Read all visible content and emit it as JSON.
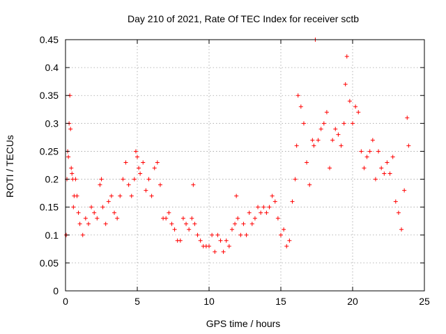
{
  "chart_data": {
    "type": "scatter",
    "title": "Day 210 of 2021, Rate Of TEC Index for receiver sctb",
    "xlabel": "GPS time / hours",
    "ylabel": "ROTI / TECUs",
    "xlim": [
      0,
      25
    ],
    "ylim": [
      0,
      0.45
    ],
    "xticks": [
      "0",
      "5",
      "10",
      "15",
      "20",
      "25"
    ],
    "yticks": [
      "0",
      "0.05",
      "0.1",
      "0.15",
      "0.2",
      "0.25",
      "0.3",
      "0.35",
      "0.4",
      "0.45"
    ],
    "grid": true,
    "marker": "+",
    "color": "#ff0000",
    "series": [
      {
        "x": [
          0.05,
          0.1,
          0.15,
          0.2,
          0.25,
          0.3,
          0.35,
          0.4,
          0.45,
          0.5,
          0.55,
          0.6,
          0.7,
          0.8,
          0.9,
          1.0,
          1.2,
          1.4,
          1.6,
          1.8,
          2.0,
          2.2,
          2.4,
          2.5,
          2.6,
          2.8,
          3.0,
          3.2,
          3.4,
          3.6,
          3.8,
          4.0,
          4.2,
          4.4,
          4.6,
          4.8,
          4.9,
          5.0,
          5.1,
          5.2,
          5.4,
          5.6,
          5.8,
          6.0,
          6.2,
          6.4,
          6.6,
          6.8,
          7.0,
          7.2,
          7.4,
          7.6,
          7.8,
          8.0,
          8.2,
          8.4,
          8.6,
          8.8,
          8.9,
          9.0,
          9.2,
          9.4,
          9.6,
          9.8,
          10.0,
          10.2,
          10.4,
          10.6,
          10.8,
          11.0,
          11.2,
          11.4,
          11.6,
          11.8,
          11.9,
          12.0,
          12.2,
          12.4,
          12.6,
          12.8,
          13.0,
          13.2,
          13.4,
          13.6,
          13.8,
          14.0,
          14.2,
          14.4,
          14.6,
          14.8,
          15.0,
          15.2,
          15.4,
          15.6,
          15.8,
          16.0,
          16.1,
          16.2,
          16.4,
          16.6,
          16.8,
          17.0,
          17.2,
          17.3,
          17.4,
          17.6,
          17.8,
          18.0,
          18.2,
          18.4,
          18.6,
          18.8,
          19.0,
          19.2,
          19.4,
          19.5,
          19.6,
          19.8,
          20.0,
          20.2,
          20.4,
          20.6,
          20.8,
          21.0,
          21.2,
          21.4,
          21.6,
          21.8,
          22.0,
          22.2,
          22.4,
          22.6,
          22.8,
          23.0,
          23.2,
          23.4,
          23.6,
          23.8,
          23.9
        ],
        "y": [
          0.1,
          0.2,
          0.25,
          0.24,
          0.3,
          0.35,
          0.29,
          0.22,
          0.21,
          0.2,
          0.15,
          0.17,
          0.2,
          0.17,
          0.14,
          0.12,
          0.1,
          0.13,
          0.12,
          0.15,
          0.14,
          0.13,
          0.19,
          0.2,
          0.15,
          0.12,
          0.16,
          0.17,
          0.14,
          0.13,
          0.17,
          0.2,
          0.23,
          0.19,
          0.17,
          0.2,
          0.25,
          0.24,
          0.22,
          0.21,
          0.23,
          0.18,
          0.2,
          0.17,
          0.22,
          0.23,
          0.19,
          0.13,
          0.13,
          0.14,
          0.12,
          0.11,
          0.09,
          0.09,
          0.13,
          0.12,
          0.11,
          0.13,
          0.19,
          0.12,
          0.1,
          0.09,
          0.08,
          0.08,
          0.08,
          0.1,
          0.07,
          0.1,
          0.09,
          0.07,
          0.09,
          0.08,
          0.11,
          0.12,
          0.17,
          0.13,
          0.1,
          0.12,
          0.1,
          0.14,
          0.12,
          0.13,
          0.15,
          0.14,
          0.15,
          0.14,
          0.15,
          0.17,
          0.16,
          0.13,
          0.1,
          0.11,
          0.08,
          0.09,
          0.16,
          0.2,
          0.26,
          0.35,
          0.33,
          0.3,
          0.23,
          0.19,
          0.27,
          0.26,
          0.45,
          0.27,
          0.29,
          0.3,
          0.32,
          0.22,
          0.27,
          0.29,
          0.28,
          0.26,
          0.3,
          0.37,
          0.42,
          0.34,
          0.3,
          0.33,
          0.32,
          0.25,
          0.22,
          0.24,
          0.25,
          0.27,
          0.2,
          0.25,
          0.22,
          0.21,
          0.23,
          0.21,
          0.24,
          0.16,
          0.14,
          0.11,
          0.18,
          0.31,
          0.26
        ]
      }
    ]
  }
}
